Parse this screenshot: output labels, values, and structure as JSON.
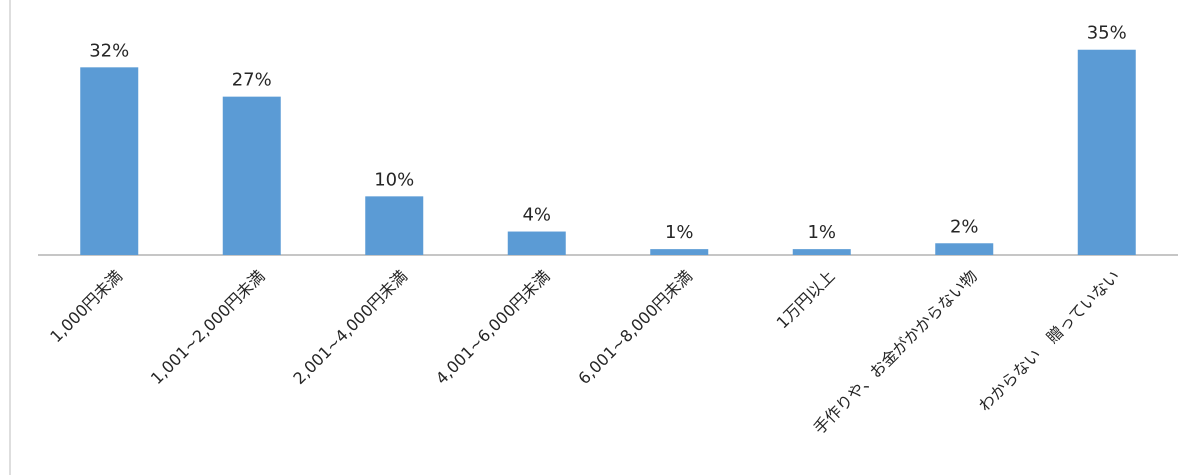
{
  "chart_data": {
    "type": "bar",
    "categories": [
      "1,000円未満",
      "1,001~2,000円未満",
      "2,001~4,000円未満",
      "4,001~6,000円未満",
      "6,001~8,000円未満",
      "1万円以上",
      "手作りや、お金がかからない物",
      "わからない　贈っていない"
    ],
    "values": [
      32,
      27,
      10,
      4,
      1,
      1,
      2,
      35
    ],
    "value_labels": [
      "32%",
      "27%",
      "10%",
      "4%",
      "1%",
      "1%",
      "2%",
      "35%"
    ],
    "ylim": [
      0,
      37
    ],
    "grid": false,
    "colors": {
      "bar": "#5b9bd5"
    }
  }
}
